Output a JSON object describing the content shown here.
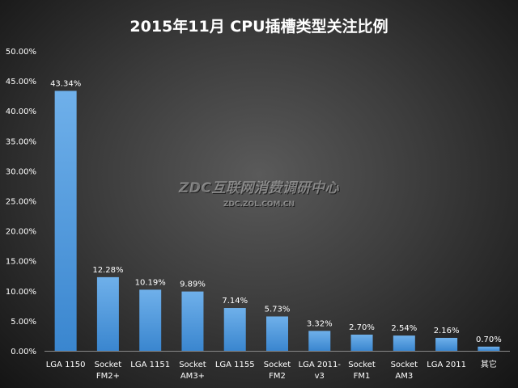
{
  "title": "2015年11月  CPU插槽类型关注比例",
  "watermark": {
    "main": "ZDC互联网消费调研中心",
    "url": "ZDC.ZOL.COM.CN"
  },
  "colors": {
    "bar_top": "#6fb0ea",
    "bar_bottom": "#3a86cf",
    "text": "#ffffff",
    "axis": "#888888"
  },
  "chart_data": {
    "type": "bar",
    "title": "2015年11月  CPU插槽类型关注比例",
    "xlabel": "",
    "ylabel": "",
    "ylim": [
      0,
      50
    ],
    "yticks": [
      0,
      5,
      10,
      15,
      20,
      25,
      30,
      35,
      40,
      45,
      50
    ],
    "ytick_labels": [
      "0.00%",
      "5.00%",
      "10.00%",
      "15.00%",
      "20.00%",
      "25.00%",
      "30.00%",
      "35.00%",
      "40.00%",
      "45.00%",
      "50.00%"
    ],
    "categories": [
      [
        "LGA 1150"
      ],
      [
        "Socket",
        "FM2+"
      ],
      [
        "LGA 1151"
      ],
      [
        "Socket",
        "AM3+"
      ],
      [
        "LGA 1155"
      ],
      [
        "Socket",
        "FM2"
      ],
      [
        "LGA 2011-",
        "v3"
      ],
      [
        "Socket",
        "FM1"
      ],
      [
        "Socket",
        "AM3"
      ],
      [
        "LGA 2011"
      ],
      [
        "其它"
      ]
    ],
    "values": [
      43.34,
      12.28,
      10.19,
      9.89,
      7.14,
      5.73,
      3.32,
      2.7,
      2.54,
      2.16,
      0.7
    ],
    "value_labels": [
      "43.34%",
      "12.28%",
      "10.19%",
      "9.89%",
      "7.14%",
      "5.73%",
      "3.32%",
      "2.70%",
      "2.54%",
      "2.16%",
      "0.70%"
    ],
    "grid": false,
    "legend": "none"
  }
}
